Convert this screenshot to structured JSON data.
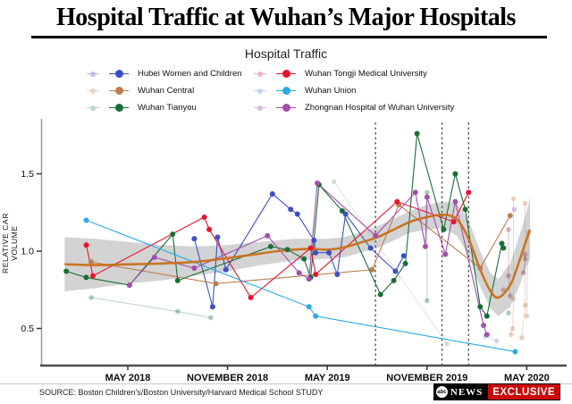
{
  "header": {
    "title": "Hospital Traffic at Wuhan’s Major Hospitals",
    "subtitle": "Hospital Traffic"
  },
  "legend": {
    "left_column": [
      {
        "label": "Hubei Women and Children",
        "color": "#3d4fc4",
        "faded_color": "#b9c0e6"
      },
      {
        "label": "Wuhan Central",
        "color": "#bc7d50",
        "faded_color": "#e9d3c2"
      },
      {
        "label": "Wuhan Tianyou",
        "color": "#1a6e38",
        "faded_color": "#bcd6c3"
      }
    ],
    "right_column": [
      {
        "label": "Wuhan Tongji Medical University",
        "color": "#e8142d",
        "faded_color": "#f0b6bd"
      },
      {
        "label": "Wuhan Union",
        "color": "#2aabe4",
        "faded_color": "#bfd4e8"
      },
      {
        "label": "Zhongnan Hospital of Wuhan University",
        "color": "#a44fad",
        "faded_color": "#d5bfd9"
      }
    ]
  },
  "chart_data": {
    "type": "line",
    "title": "Hospital Traffic",
    "ylabel": "RELATIVE CAR VOLUME",
    "x_unit": "months since Jan 2018",
    "xlim": [
      -1.2,
      30.5
    ],
    "ylim": [
      0.26,
      1.86
    ],
    "grid": false,
    "x_ticks": [
      {
        "label": "MAY 2018",
        "m": 4
      },
      {
        "label": "NOVEMBER 2018",
        "m": 10
      },
      {
        "label": "MAY 2019",
        "m": 16
      },
      {
        "label": "NOVEMBER 2019",
        "m": 22
      },
      {
        "label": "MAY 2020",
        "m": 28
      }
    ],
    "y_ticks": [
      {
        "label": "0.5",
        "v": 0.5
      },
      {
        "label": "1.0",
        "v": 1.0
      },
      {
        "label": "1.5",
        "v": 1.5
      }
    ],
    "event_lines": [
      {
        "m": 18.9,
        "approx_date": "SEP 2019"
      },
      {
        "m": 22.9,
        "approx_date": "DEC 2019"
      },
      {
        "m": 24.5,
        "approx_date": "JAN 2020"
      }
    ],
    "band": {
      "color": "#a8a8a8",
      "opacity": 0.5,
      "points": [
        [
          0.2,
          0.74,
          1.09
        ],
        [
          2,
          0.76,
          1.08
        ],
        [
          4,
          0.79,
          1.06
        ],
        [
          6,
          0.81,
          1.04
        ],
        [
          8,
          0.84,
          1.03
        ],
        [
          10,
          0.87,
          1.04
        ],
        [
          12,
          0.91,
          1.06
        ],
        [
          14,
          0.94,
          1.08
        ],
        [
          16,
          0.95,
          1.08
        ],
        [
          17,
          0.96,
          1.09
        ],
        [
          18,
          0.99,
          1.12
        ],
        [
          19,
          1.02,
          1.16
        ],
        [
          20,
          1.07,
          1.21
        ],
        [
          21,
          1.12,
          1.26
        ],
        [
          22,
          1.14,
          1.3
        ],
        [
          23,
          1.15,
          1.32
        ],
        [
          23.8,
          1.1,
          1.31
        ],
        [
          24.5,
          0.97,
          1.2
        ],
        [
          25.2,
          0.77,
          1.0
        ],
        [
          25.8,
          0.63,
          0.86
        ],
        [
          26.3,
          0.58,
          0.82
        ],
        [
          27,
          0.64,
          0.92
        ],
        [
          27.5,
          0.76,
          1.08
        ],
        [
          28,
          0.9,
          1.26
        ],
        [
          28.2,
          0.95,
          1.35
        ]
      ]
    },
    "smoother": {
      "name": "LOESS trend",
      "color": "#c8701a",
      "points": [
        [
          0.2,
          0.915
        ],
        [
          2,
          0.91
        ],
        [
          4,
          0.915
        ],
        [
          6,
          0.92
        ],
        [
          8,
          0.93
        ],
        [
          10,
          0.955
        ],
        [
          12,
          0.985
        ],
        [
          13,
          1.0
        ],
        [
          14,
          1.01
        ],
        [
          15,
          1.015
        ],
        [
          16,
          1.01
        ],
        [
          17,
          1.025
        ],
        [
          18,
          1.055
        ],
        [
          19,
          1.09
        ],
        [
          20,
          1.14
        ],
        [
          21,
          1.19
        ],
        [
          22,
          1.22
        ],
        [
          23,
          1.235
        ],
        [
          23.8,
          1.205
        ],
        [
          24.5,
          1.08
        ],
        [
          25.2,
          0.88
        ],
        [
          25.8,
          0.745
        ],
        [
          26.3,
          0.7
        ],
        [
          27,
          0.78
        ],
        [
          27.5,
          0.92
        ],
        [
          28,
          1.08
        ],
        [
          28.2,
          1.14
        ]
      ]
    },
    "series": [
      {
        "name": "Hubei Women and Children",
        "color": "#3d4fc4",
        "points": [
          [
            8.0,
            1.08
          ],
          [
            9.1,
            0.64
          ],
          [
            9.4,
            1.09
          ],
          [
            9.9,
            0.88
          ],
          [
            12.7,
            1.37
          ],
          [
            13.8,
            1.27
          ],
          [
            14.2,
            1.24
          ],
          [
            15.2,
            1.07
          ],
          [
            15.3,
            0.99
          ],
          [
            16.1,
            0.99
          ],
          [
            16.6,
            0.85
          ],
          [
            17.1,
            1.24
          ],
          [
            18.6,
            1.02
          ],
          [
            20.1,
            0.87
          ],
          [
            20.6,
            0.97
          ]
        ]
      },
      {
        "name": "Wuhan Central",
        "color": "#bc7d50",
        "points": [
          [
            1.8,
            0.93
          ],
          [
            9.3,
            0.79
          ],
          [
            18.7,
            0.88
          ],
          [
            20.3,
            1.3
          ],
          [
            25.2,
            0.89
          ],
          [
            27.0,
            1.23
          ]
        ]
      },
      {
        "name": "Wuhan Tianyou",
        "color": "#1a6e38",
        "points": [
          [
            0.3,
            0.87
          ],
          [
            1.5,
            0.83
          ],
          [
            4.1,
            0.78
          ],
          [
            6.7,
            1.11
          ],
          [
            7.0,
            0.81
          ],
          [
            12.6,
            1.03
          ],
          [
            13.6,
            1.01
          ],
          [
            14.6,
            0.95
          ],
          [
            15.0,
            0.83
          ],
          [
            15.5,
            1.43
          ],
          [
            16.9,
            1.26
          ],
          [
            19.2,
            0.72
          ],
          [
            20.0,
            0.81
          ],
          [
            20.7,
            0.92
          ],
          [
            21.4,
            1.76
          ],
          [
            23.0,
            1.14
          ],
          [
            23.7,
            1.5
          ],
          [
            24.3,
            1.27
          ],
          [
            25.2,
            0.64
          ],
          [
            25.6,
            0.58
          ],
          [
            26.5,
            1.05
          ],
          [
            26.6,
            1.02
          ]
        ]
      },
      {
        "name": "Wuhan Tongji Medical University",
        "color": "#e8142d",
        "points": [
          [
            1.5,
            1.04
          ],
          [
            1.9,
            0.84
          ],
          [
            8.6,
            1.22
          ],
          [
            8.9,
            1.14
          ],
          [
            11.4,
            0.7
          ],
          [
            15.0,
            1.02
          ],
          [
            15.3,
            0.85
          ],
          [
            20.2,
            1.32
          ],
          [
            23.6,
            1.19
          ],
          [
            24.5,
            1.38
          ]
        ]
      },
      {
        "name": "Wuhan Union",
        "color": "#2aabe4",
        "points": [
          [
            1.5,
            1.2
          ],
          [
            14.9,
            0.64
          ],
          [
            15.3,
            0.58
          ],
          [
            27.3,
            0.35
          ]
        ]
      },
      {
        "name": "Zhongnan Hospital of Wuhan University",
        "color": "#a44fad",
        "points": [
          [
            4.1,
            0.78
          ],
          [
            5.6,
            0.96
          ],
          [
            8.0,
            0.89
          ],
          [
            12.4,
            1.1
          ],
          [
            14.3,
            0.86
          ],
          [
            14.9,
            0.82
          ],
          [
            15.4,
            1.44
          ],
          [
            18.9,
            1.1
          ],
          [
            21.3,
            1.38
          ],
          [
            21.9,
            1.03
          ],
          [
            22.0,
            1.35
          ],
          [
            23.1,
            0.98
          ],
          [
            23.7,
            1.32
          ],
          [
            25.4,
            0.52
          ],
          [
            25.6,
            0.46
          ]
        ]
      }
    ],
    "faded": [
      {
        "color": "#1a6e38",
        "segments": [
          [
            [
              1.8,
              0.7
            ],
            [
              7.0,
              0.61
            ],
            [
              9.0,
              0.57
            ]
          ],
          [
            [
              22.0,
              1.38
            ],
            [
              22.0,
              0.68
            ]
          ],
          [
            [
              26.9,
              0.6
            ]
          ]
        ]
      },
      {
        "color": "#9a9a9a",
        "segments": [
          [
            [
              16.4,
              1.45
            ],
            [
              23.2,
              0.4
            ]
          ]
        ]
      },
      {
        "color": "#7d94b5",
        "segments": [
          [
            [
              25.5,
              0.45
            ],
            [
              26.2,
              0.42
            ]
          ]
        ]
      },
      {
        "color": "#bc7d50",
        "segments": [
          [
            [
              27.2,
              1.34
            ],
            [
              27.2,
              0.69
            ],
            [
              27.15,
              0.5
            ],
            [
              27.05,
              0.46
            ]
          ],
          [
            [
              27.9,
              1.31
            ],
            [
              27.9,
              0.65
            ],
            [
              27.7,
              0.44
            ]
          ],
          [
            [
              28.1,
              1.12
            ],
            [
              28.0,
              0.58
            ]
          ]
        ]
      },
      {
        "color": "#8d3348",
        "segments": [
          [
            [
              26.9,
              1.14
            ],
            [
              26.9,
              0.84
            ],
            [
              27.0,
              0.71
            ]
          ],
          [
            [
              27.9,
              0.98
            ],
            [
              27.9,
              0.95
            ],
            [
              27.8,
              0.86
            ]
          ],
          [
            [
              26.6,
              0.75
            ]
          ]
        ]
      },
      {
        "color": "#a44fad",
        "segments": [
          [
            [
              27.25,
              1.27
            ]
          ]
        ]
      }
    ]
  },
  "footer": {
    "source": "SOURCE: Boston Children's/Boston University/Harvard Medical School STUDY",
    "brand": {
      "abc": "abc",
      "news": "NEWS",
      "exclusive": "EXCLUSIVE"
    }
  }
}
